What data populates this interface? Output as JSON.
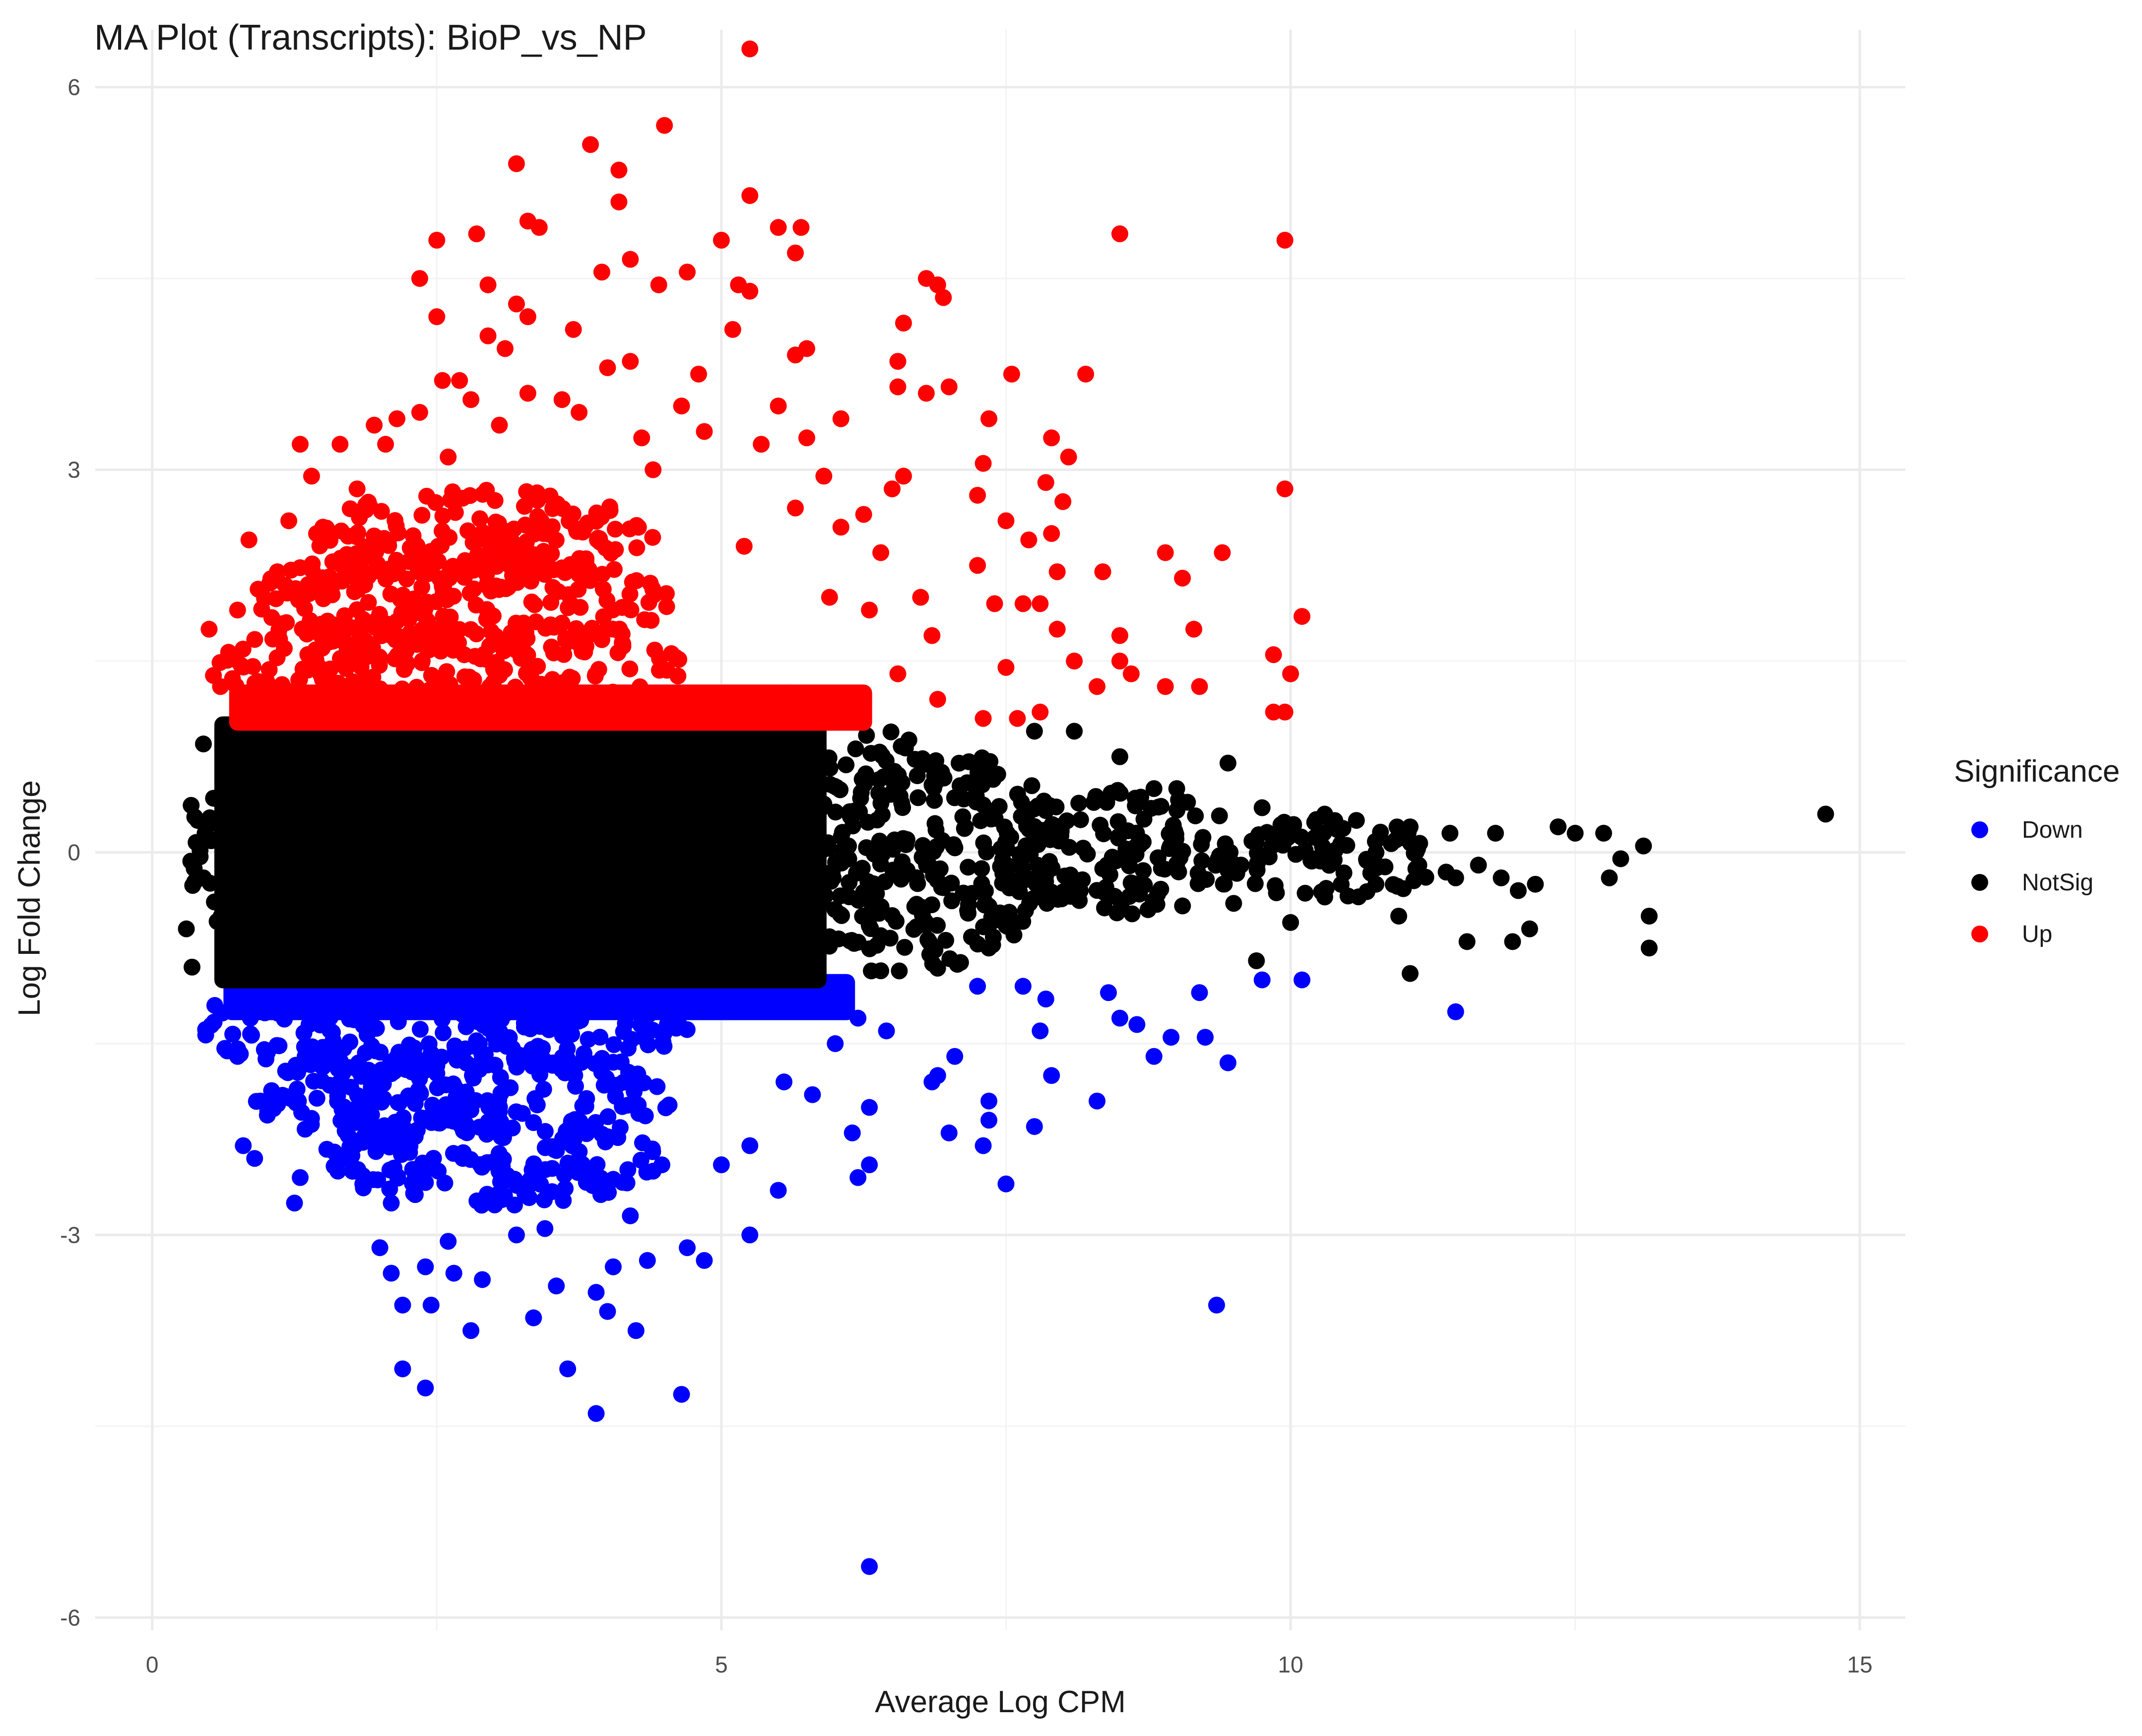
{
  "chart_data": {
    "type": "scatter",
    "title": "MA Plot (Transcripts): BioP_vs_NP",
    "xlabel": "Average Log CPM",
    "ylabel": "Log Fold Change",
    "xlim": [
      -0.5,
      15.4
    ],
    "ylim": [
      -6.1,
      6.45
    ],
    "x_ticks": [
      0,
      5,
      10,
      15
    ],
    "y_ticks": [
      -6,
      -3,
      0,
      3,
      6
    ],
    "x_tick_labels": [
      "0",
      "5",
      "10",
      "15"
    ],
    "y_tick_labels": [
      "-6",
      "-3",
      "0",
      "3",
      "6"
    ],
    "grid": true,
    "legend": {
      "title": "Significance",
      "position": "right",
      "entries": [
        "Down",
        "NotSig",
        "Up"
      ]
    },
    "colors": {
      "Down": "#0000ff",
      "NotSig": "#000000",
      "Up": "#ff0000"
    },
    "series": [
      {
        "name": "Up",
        "points": [
          [
            5.25,
            6.3
          ],
          [
            4.5,
            5.7
          ],
          [
            3.85,
            5.55
          ],
          [
            4.1,
            5.35
          ],
          [
            3.2,
            5.4
          ],
          [
            4.1,
            5.1
          ],
          [
            5.25,
            5.15
          ],
          [
            3.3,
            4.95
          ],
          [
            3.4,
            4.9
          ],
          [
            5.7,
            4.9
          ],
          [
            5.0,
            4.8
          ],
          [
            5.5,
            4.9
          ],
          [
            2.5,
            4.8
          ],
          [
            2.85,
            4.85
          ],
          [
            8.5,
            4.85
          ],
          [
            9.95,
            4.8
          ],
          [
            5.65,
            4.7
          ],
          [
            4.2,
            4.65
          ],
          [
            2.35,
            4.5
          ],
          [
            3.95,
            4.55
          ],
          [
            4.7,
            4.55
          ],
          [
            6.8,
            4.5
          ],
          [
            6.9,
            4.45
          ],
          [
            6.95,
            4.35
          ],
          [
            5.25,
            4.4
          ],
          [
            3.2,
            4.3
          ],
          [
            2.5,
            4.2
          ],
          [
            5.15,
            4.45
          ],
          [
            2.95,
            4.45
          ],
          [
            3.3,
            4.2
          ],
          [
            4.45,
            4.45
          ],
          [
            6.6,
            4.15
          ],
          [
            5.1,
            4.1
          ],
          [
            3.7,
            4.1
          ],
          [
            2.95,
            4.05
          ],
          [
            5.75,
            3.95
          ],
          [
            3.1,
            3.95
          ],
          [
            6.55,
            3.85
          ],
          [
            4.2,
            3.85
          ],
          [
            4.0,
            3.8
          ],
          [
            4.8,
            3.75
          ],
          [
            5.65,
            3.9
          ],
          [
            7.55,
            3.75
          ],
          [
            8.2,
            3.75
          ],
          [
            2.55,
            3.7
          ],
          [
            2.7,
            3.7
          ],
          [
            6.55,
            3.65
          ],
          [
            7.0,
            3.65
          ],
          [
            3.3,
            3.6
          ],
          [
            3.6,
            3.55
          ],
          [
            6.8,
            3.6
          ],
          [
            5.5,
            3.5
          ],
          [
            4.65,
            3.5
          ],
          [
            2.8,
            3.55
          ],
          [
            2.15,
            3.4
          ],
          [
            1.95,
            3.35
          ],
          [
            2.35,
            3.45
          ],
          [
            3.75,
            3.45
          ],
          [
            6.05,
            3.4
          ],
          [
            7.35,
            3.4
          ],
          [
            1.3,
            3.2
          ],
          [
            1.65,
            3.2
          ],
          [
            7.9,
            3.25
          ],
          [
            5.75,
            3.25
          ],
          [
            7.3,
            3.05
          ],
          [
            8.05,
            3.1
          ],
          [
            9.95,
            2.85
          ],
          [
            7.85,
            2.9
          ],
          [
            8.0,
            2.75
          ],
          [
            6.5,
            2.85
          ],
          [
            6.6,
            2.95
          ],
          [
            7.25,
            2.8
          ],
          [
            5.65,
            2.7
          ],
          [
            7.5,
            2.6
          ],
          [
            6.05,
            2.55
          ],
          [
            7.9,
            2.5
          ],
          [
            7.7,
            2.45
          ],
          [
            8.9,
            2.35
          ],
          [
            9.4,
            2.35
          ],
          [
            7.95,
            2.2
          ],
          [
            8.35,
            2.2
          ],
          [
            9.05,
            2.15
          ],
          [
            7.25,
            2.25
          ],
          [
            6.75,
            2.0
          ],
          [
            7.4,
            1.95
          ],
          [
            7.65,
            1.95
          ],
          [
            7.8,
            1.95
          ],
          [
            10.1,
            1.85
          ],
          [
            7.95,
            1.75
          ],
          [
            8.5,
            1.7
          ],
          [
            9.15,
            1.75
          ],
          [
            9.85,
            1.55
          ],
          [
            10.0,
            1.4
          ],
          [
            8.5,
            1.5
          ],
          [
            8.1,
            1.5
          ],
          [
            7.5,
            1.45
          ],
          [
            8.6,
            1.4
          ],
          [
            9.2,
            1.3
          ],
          [
            8.9,
            1.3
          ],
          [
            8.3,
            1.3
          ],
          [
            7.8,
            1.1
          ],
          [
            9.85,
            1.1
          ],
          [
            9.95,
            1.1
          ],
          [
            7.6,
            1.05
          ],
          [
            7.3,
            1.05
          ],
          [
            0.5,
            1.75
          ],
          [
            0.75,
            1.9
          ],
          [
            0.6,
            1.3
          ],
          [
            0.85,
            2.45
          ],
          [
            1.1,
            2.2
          ],
          [
            1.2,
            2.6
          ],
          [
            1.5,
            2.55
          ],
          [
            1.0,
            1.15
          ],
          [
            1.4,
            2.95
          ],
          [
            1.8,
            2.85
          ],
          [
            2.05,
            3.2
          ],
          [
            2.6,
            3.1
          ],
          [
            3.05,
            3.35
          ],
          [
            4.3,
            3.25
          ],
          [
            4.85,
            3.3
          ],
          [
            5.35,
            3.2
          ],
          [
            4.4,
            3.0
          ],
          [
            5.9,
            2.95
          ],
          [
            6.25,
            2.65
          ],
          [
            6.4,
            2.35
          ],
          [
            5.2,
            2.4
          ],
          [
            5.95,
            2.0
          ],
          [
            6.3,
            1.9
          ],
          [
            6.85,
            1.7
          ],
          [
            6.55,
            1.4
          ],
          [
            6.2,
            1.15
          ],
          [
            5.6,
            1.25
          ],
          [
            6.9,
            1.2
          ]
        ],
        "clusters": [
          {
            "cx": 2.6,
            "cy": 1.45,
            "rx": 2.1,
            "ry": 0.42
          },
          {
            "cx": 2.7,
            "cy": 1.95,
            "rx": 1.85,
            "ry": 0.45
          },
          {
            "cx": 2.9,
            "cy": 2.45,
            "rx": 1.5,
            "ry": 0.4
          }
        ],
        "fill_region": {
          "x0": 0.75,
          "x1": 6.25,
          "y0": 1.02,
          "y1": 1.25
        }
      },
      {
        "name": "Down",
        "points": [
          [
            6.3,
            -5.6
          ],
          [
            3.9,
            -4.4
          ],
          [
            4.65,
            -4.25
          ],
          [
            2.4,
            -4.2
          ],
          [
            2.2,
            -4.05
          ],
          [
            3.65,
            -4.05
          ],
          [
            4.25,
            -3.75
          ],
          [
            2.8,
            -3.75
          ],
          [
            3.35,
            -3.65
          ],
          [
            4.0,
            -3.6
          ],
          [
            9.35,
            -3.55
          ],
          [
            2.2,
            -3.55
          ],
          [
            2.45,
            -3.55
          ],
          [
            2.4,
            -3.25
          ],
          [
            2.65,
            -3.3
          ],
          [
            3.55,
            -3.4
          ],
          [
            3.9,
            -3.45
          ],
          [
            4.35,
            -3.2
          ],
          [
            4.05,
            -3.25
          ],
          [
            2.1,
            -3.3
          ],
          [
            4.7,
            -3.1
          ],
          [
            4.85,
            -3.2
          ],
          [
            5.25,
            -3.0
          ],
          [
            2.6,
            -3.05
          ],
          [
            3.2,
            -3.0
          ],
          [
            3.45,
            -2.95
          ],
          [
            2.0,
            -3.1
          ],
          [
            1.25,
            -2.75
          ],
          [
            1.3,
            -2.55
          ],
          [
            7.5,
            -2.6
          ],
          [
            5.5,
            -2.65
          ],
          [
            6.2,
            -2.55
          ],
          [
            6.3,
            -2.45
          ],
          [
            6.15,
            -2.2
          ],
          [
            6.3,
            -2.0
          ],
          [
            7.0,
            -2.2
          ],
          [
            7.35,
            -2.1
          ],
          [
            7.3,
            -2.3
          ],
          [
            7.75,
            -2.15
          ],
          [
            7.35,
            -1.95
          ],
          [
            8.3,
            -1.95
          ],
          [
            9.45,
            -1.65
          ],
          [
            7.9,
            -1.75
          ],
          [
            6.85,
            -1.8
          ],
          [
            7.05,
            -1.6
          ],
          [
            6.9,
            -1.75
          ],
          [
            8.8,
            -1.6
          ],
          [
            9.25,
            -1.45
          ],
          [
            8.95,
            -1.45
          ],
          [
            8.5,
            -1.3
          ],
          [
            8.65,
            -1.35
          ],
          [
            8.4,
            -1.1
          ],
          [
            9.2,
            -1.1
          ],
          [
            9.75,
            -1.0
          ],
          [
            10.1,
            -1.0
          ],
          [
            11.45,
            -1.25
          ],
          [
            7.65,
            -1.05
          ],
          [
            7.25,
            -1.05
          ],
          [
            7.85,
            -1.15
          ],
          [
            7.8,
            -1.4
          ],
          [
            5.25,
            -2.3
          ],
          [
            5.0,
            -2.45
          ],
          [
            4.4,
            -2.5
          ],
          [
            6.0,
            -1.5
          ],
          [
            6.2,
            -1.3
          ],
          [
            6.45,
            -1.4
          ],
          [
            5.8,
            -1.9
          ],
          [
            5.55,
            -1.8
          ],
          [
            0.8,
            -2.3
          ],
          [
            0.9,
            -2.4
          ],
          [
            0.95,
            -1.95
          ],
          [
            0.75,
            -1.6
          ],
          [
            0.55,
            -1.2
          ],
          [
            1.6,
            -2.35
          ],
          [
            1.85,
            -2.6
          ],
          [
            2.1,
            -2.75
          ],
          [
            2.9,
            -3.35
          ],
          [
            4.2,
            -2.85
          ]
        ],
        "clusters": [
          {
            "cx": 2.6,
            "cy": -1.4,
            "rx": 2.2,
            "ry": 0.38
          },
          {
            "cx": 2.7,
            "cy": -1.9,
            "rx": 1.9,
            "ry": 0.42
          },
          {
            "cx": 3.0,
            "cy": -2.4,
            "rx": 1.5,
            "ry": 0.38
          }
        ],
        "fill_region": {
          "x0": 0.7,
          "x1": 6.1,
          "y0": -1.25,
          "y1": -1.02
        }
      },
      {
        "name": "NotSig",
        "points": [
          [
            14.7,
            0.3
          ],
          [
            13.1,
            0.05
          ],
          [
            12.9,
            -0.05
          ],
          [
            13.15,
            -0.5
          ],
          [
            13.15,
            -0.75
          ],
          [
            12.35,
            0.2
          ],
          [
            12.5,
            0.15
          ],
          [
            12.75,
            0.15
          ],
          [
            12.8,
            -0.2
          ],
          [
            12.1,
            -0.6
          ],
          [
            11.55,
            -0.7
          ],
          [
            11.4,
            0.15
          ],
          [
            11.05,
            0.2
          ],
          [
            11.05,
            -0.95
          ],
          [
            11.8,
            0.15
          ],
          [
            11.95,
            -0.7
          ],
          [
            12.15,
            -0.25
          ],
          [
            11.85,
            -0.2
          ],
          [
            11.65,
            -0.1
          ],
          [
            11.45,
            -0.2
          ],
          [
            10.95,
            -0.5
          ],
          [
            10.75,
            -0.25
          ],
          [
            10.3,
            0.3
          ],
          [
            9.45,
            0.7
          ],
          [
            9.75,
            0.35
          ],
          [
            8.8,
            0.5
          ],
          [
            9.0,
            0.5
          ],
          [
            8.5,
            0.75
          ],
          [
            8.1,
            0.95
          ],
          [
            7.75,
            0.95
          ],
          [
            9.7,
            -0.85
          ],
          [
            10.3,
            -0.35
          ],
          [
            10.0,
            -0.55
          ],
          [
            9.5,
            -0.4
          ],
          [
            12.0,
            -0.3
          ],
          [
            0.3,
            -0.6
          ],
          [
            0.35,
            -0.9
          ],
          [
            0.45,
            0.85
          ],
          [
            0.4,
            0.25
          ],
          [
            0.45,
            -0.2
          ]
        ],
        "clusters": [
          {
            "cx": 3.0,
            "cy": 0.0,
            "rx": 2.9,
            "ry": 1.0
          },
          {
            "cx": 6.5,
            "cy": 0.0,
            "rx": 1.5,
            "ry": 0.95
          },
          {
            "cx": 8.5,
            "cy": 0.0,
            "rx": 1.1,
            "ry": 0.5
          },
          {
            "cx": 10.4,
            "cy": -0.05,
            "rx": 1.1,
            "ry": 0.32
          }
        ],
        "fill_region": {
          "x0": 0.62,
          "x1": 5.85,
          "y0": -1.0,
          "y1": 1.0
        }
      }
    ]
  }
}
